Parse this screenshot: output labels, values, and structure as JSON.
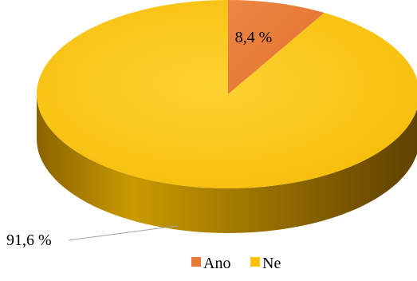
{
  "chart_data": {
    "type": "pie",
    "style": "3d",
    "title": "",
    "categories": [
      "Ano",
      "Ne"
    ],
    "values": [
      8.4,
      91.6
    ],
    "data_labels": [
      "8,4 %",
      "91,6 %"
    ],
    "colors": [
      "#E97A35",
      "#FCC20A"
    ],
    "side_colors": [
      "#9A4A17",
      "#B38600"
    ],
    "legend": {
      "placement": "bottom",
      "entries": [
        "Ano",
        "Ne"
      ]
    }
  }
}
